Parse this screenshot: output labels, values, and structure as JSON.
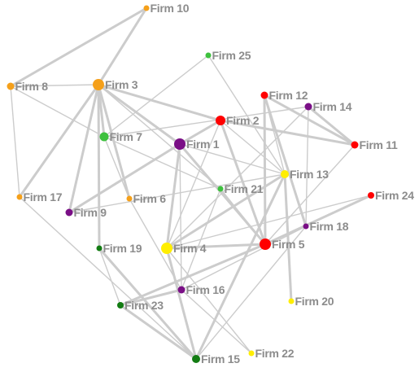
{
  "colors": {
    "edge": "#cccccc",
    "label": "#8c8c8c",
    "orange": "#f5a01a",
    "red": "#ff0000",
    "purple": "#7a0f86",
    "lime": "#3ec13e",
    "dark_green": "#137c13",
    "yellow": "#ffee00"
  },
  "nodes": [
    {
      "id": "f1",
      "label": "Firm 1",
      "color": "purple"
    },
    {
      "id": "f2",
      "label": "Firm 2",
      "color": "red"
    },
    {
      "id": "f3",
      "label": "Firm 3",
      "color": "orange"
    },
    {
      "id": "f4",
      "label": "Firm 4",
      "color": "yellow"
    },
    {
      "id": "f5",
      "label": "Firm 5",
      "color": "red"
    },
    {
      "id": "f6",
      "label": "Firm 6",
      "color": "orange"
    },
    {
      "id": "f7",
      "label": "Firm 7",
      "color": "lime"
    },
    {
      "id": "f8",
      "label": "Firm 8",
      "color": "orange"
    },
    {
      "id": "f9",
      "label": "Firm 9",
      "color": "purple"
    },
    {
      "id": "f10",
      "label": "Firm 10",
      "color": "orange"
    },
    {
      "id": "f11",
      "label": "Firm 11",
      "color": "red"
    },
    {
      "id": "f12",
      "label": "Firm 12",
      "color": "red"
    },
    {
      "id": "f13",
      "label": "Firm 13",
      "color": "yellow"
    },
    {
      "id": "f14",
      "label": "Firm 14",
      "color": "purple"
    },
    {
      "id": "f15",
      "label": "Firm 15",
      "color": "dark_green"
    },
    {
      "id": "f16",
      "label": "Firm 16",
      "color": "purple"
    },
    {
      "id": "f17",
      "label": "Firm 17",
      "color": "orange"
    },
    {
      "id": "f18",
      "label": "Firm 18",
      "color": "purple"
    },
    {
      "id": "f19",
      "label": "Firm 19",
      "color": "dark_green"
    },
    {
      "id": "f20",
      "label": "Firm 20",
      "color": "yellow"
    },
    {
      "id": "f21",
      "label": "Firm 21",
      "color": "lime"
    },
    {
      "id": "f22",
      "label": "Firm 22",
      "color": "yellow"
    },
    {
      "id": "f23",
      "label": "Firm 23",
      "color": "dark_green"
    },
    {
      "id": "f24",
      "label": "Firm 24",
      "color": "red"
    },
    {
      "id": "f25",
      "label": "Firm 25",
      "color": "lime"
    }
  ],
  "edges": [
    [
      "f3",
      "f10"
    ],
    [
      "f8",
      "f10"
    ],
    [
      "f3",
      "f8"
    ],
    [
      "f8",
      "f17"
    ],
    [
      "f8",
      "f7"
    ],
    [
      "f3",
      "f17"
    ],
    [
      "f3",
      "f7"
    ],
    [
      "f3",
      "f1"
    ],
    [
      "f3",
      "f2"
    ],
    [
      "f3",
      "f6"
    ],
    [
      "f3",
      "f9"
    ],
    [
      "f3",
      "f19"
    ],
    [
      "f3",
      "f21"
    ],
    [
      "f25",
      "f7"
    ],
    [
      "f25",
      "f13"
    ],
    [
      "f7",
      "f6"
    ],
    [
      "f7",
      "f21"
    ],
    [
      "f7",
      "f14"
    ],
    [
      "f2",
      "f1"
    ],
    [
      "f2",
      "f11"
    ],
    [
      "f2",
      "f5"
    ],
    [
      "f2",
      "f13"
    ],
    [
      "f2",
      "f4"
    ],
    [
      "f12",
      "f11"
    ],
    [
      "f12",
      "f5"
    ],
    [
      "f12",
      "f18"
    ],
    [
      "f12",
      "f13"
    ],
    [
      "f14",
      "f11"
    ],
    [
      "f14",
      "f4"
    ],
    [
      "f14",
      "f18"
    ],
    [
      "f1",
      "f9"
    ],
    [
      "f1",
      "f4"
    ],
    [
      "f1",
      "f16"
    ],
    [
      "f1",
      "f5"
    ],
    [
      "f1",
      "f13"
    ],
    [
      "f9",
      "f13"
    ],
    [
      "f6",
      "f16"
    ],
    [
      "f21",
      "f5"
    ],
    [
      "f21",
      "f16"
    ],
    [
      "f13",
      "f4"
    ],
    [
      "f13",
      "f20"
    ],
    [
      "f13",
      "f15"
    ],
    [
      "f24",
      "f5"
    ],
    [
      "f24",
      "f4"
    ],
    [
      "f11",
      "f5"
    ],
    [
      "f18",
      "f16"
    ],
    [
      "f18",
      "f15"
    ],
    [
      "f4",
      "f5"
    ],
    [
      "f4",
      "f15"
    ],
    [
      "f4",
      "f22"
    ],
    [
      "f5",
      "f23"
    ],
    [
      "f19",
      "f15"
    ],
    [
      "f19",
      "f23"
    ],
    [
      "f16",
      "f23"
    ],
    [
      "f16",
      "f22"
    ],
    [
      "f23",
      "f15"
    ],
    [
      "f15",
      "f17"
    ]
  ]
}
